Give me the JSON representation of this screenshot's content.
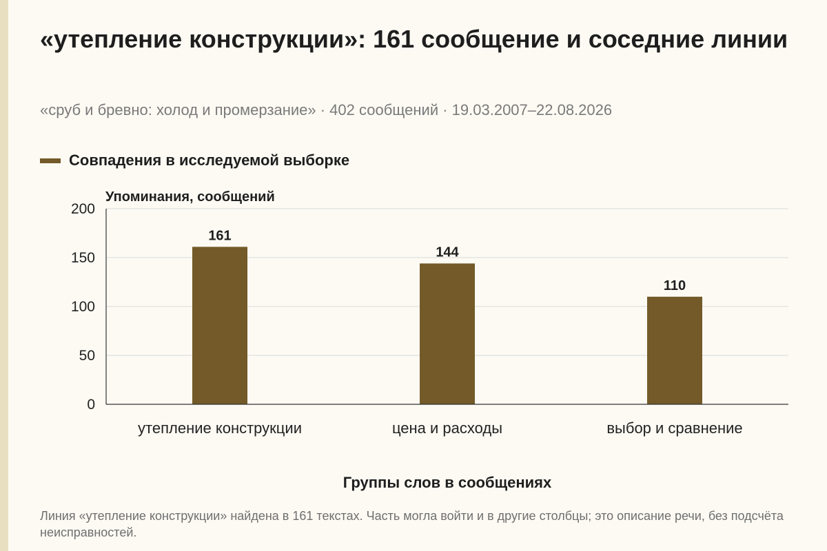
{
  "chart_data": {
    "type": "bar",
    "title": "«утепление конструкции»: 161 сообщение и соседние линии",
    "subtitle": "«сруб и бревно: холод и промерзание» · 402 сообщений · 19.03.2007–22.08.2026",
    "categories": [
      "утепление конструкции",
      "цена и расходы",
      "выбор и сравнение"
    ],
    "series": [
      {
        "name": "Совпадения в исследуемой выборке",
        "values": [
          161,
          144,
          110
        ],
        "color": "#735a28"
      }
    ],
    "ylabel": "Упоминания, сообщений",
    "xlabel": "Группы слов в сообщениях",
    "ylim": [
      0,
      200
    ],
    "yticks": [
      0,
      50,
      100,
      150,
      200
    ],
    "grid": true,
    "legend_position": "top-left",
    "note": "Линия «утепление конструкции» найдена в 161 текстах. Часть могла войти и в другие столбцы; это описание речи, без подсчёта неисправностей."
  },
  "colors": {
    "bar": "#735a28",
    "grid": "#d9d9d9",
    "axis": "#333333",
    "background": "#fcfaf3"
  }
}
